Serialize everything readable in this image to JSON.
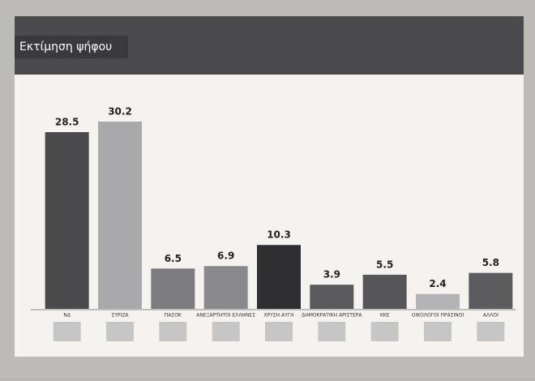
{
  "chart_data": {
    "type": "bar",
    "title": "Εκτίμηση ψήφου",
    "categories": [
      "ΝΔ",
      "ΣΥΡΙΖΑ",
      "ΠΑΣΟΚ",
      "ΑΝΕΞΑΡΤΗΤΟΙ ΕΛΛΗΝΕΣ",
      "ΧΡΥΣΗ ΑΥΓΗ",
      "ΔΗΜΟΚΡΑΤΙΚΗ ΑΡΙΣΤΕΡΑ",
      "ΚΚΕ",
      "ΟΙΚΟΛΟΓΟΙ ΠΡΑΣΙΝΟΙ",
      "ΑΛΛΟΙ"
    ],
    "values": [
      28.5,
      30.2,
      6.5,
      6.9,
      10.3,
      3.9,
      5.5,
      2.4,
      5.8
    ],
    "colors": [
      "#4a4a4c",
      "#a9a9ab",
      "#7c7c7e",
      "#8a8a8c",
      "#2f2f31",
      "#5a5a5c",
      "#565658",
      "#b4b4b6",
      "#5c5c5e"
    ]
  }
}
